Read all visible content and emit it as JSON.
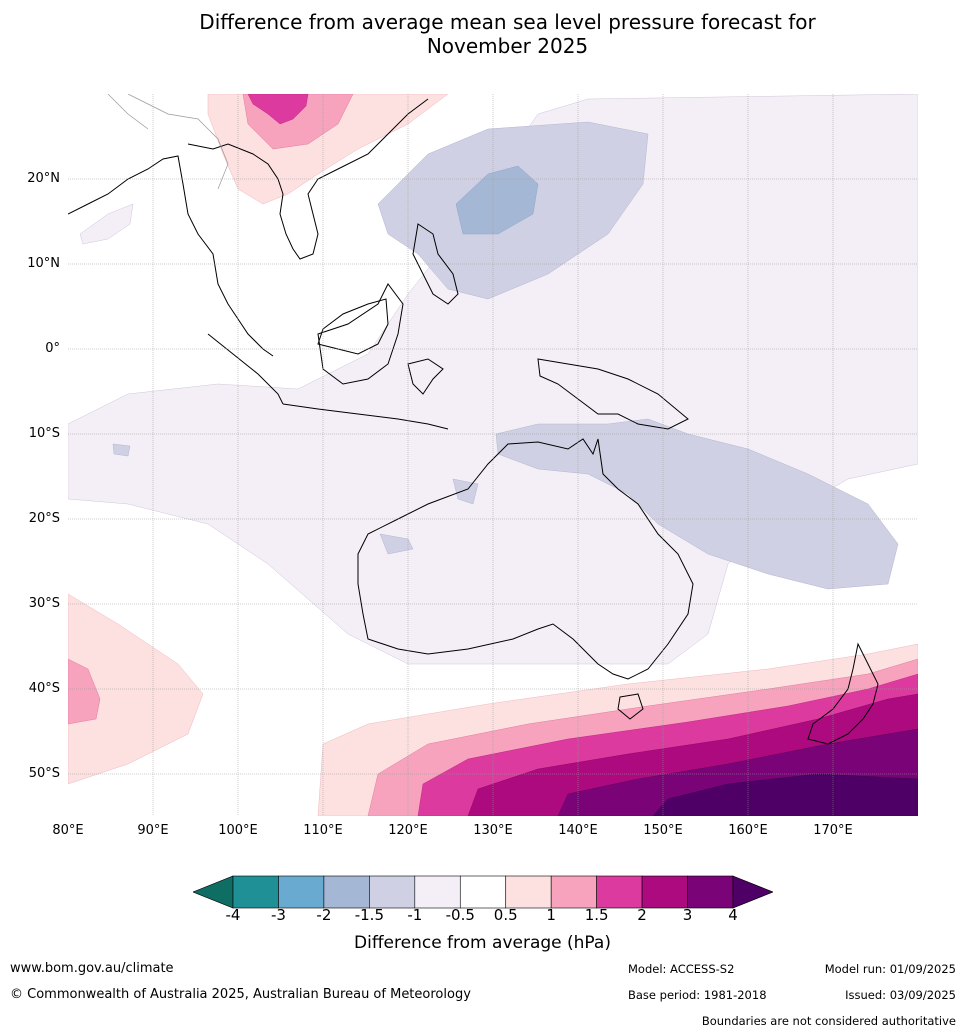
{
  "title": {
    "line1": "Difference from average mean sea level pressure forecast for",
    "line2": "November 2025"
  },
  "map": {
    "lat_labels": [
      "20°N",
      "10°N",
      "0°",
      "10°S",
      "20°S",
      "30°S",
      "40°S",
      "50°S"
    ],
    "lon_labels": [
      "80°E",
      "90°E",
      "100°E",
      "110°E",
      "120°E",
      "130°E",
      "140°E",
      "150°E",
      "160°E",
      "170°E"
    ],
    "extent": {
      "lon": [
        80,
        180
      ],
      "lat": [
        -55,
        30
      ]
    },
    "grid": true
  },
  "legend": {
    "ticks": [
      "-4",
      "-3",
      "-2",
      "-1.5",
      "-1",
      "-0.5",
      "0.5",
      "1",
      "1.5",
      "2",
      "3",
      "4"
    ],
    "colors": [
      "#0f6e63",
      "#1f9095",
      "#69abd0",
      "#a4b8d6",
      "#cfd0e3",
      "#f4eef6",
      "#ffffff",
      "#fde0e0",
      "#f7a3bd",
      "#dc3a9e",
      "#ad0a7f",
      "#7a0378",
      "#4e0066"
    ],
    "label": "Difference from average (hPa)"
  },
  "footer": {
    "url": "www.bom.gov.au/climate",
    "copyright": "© Commonwealth of Australia 2025, Australian Bureau of Meteorology",
    "model": "Model: ACCESS-S2",
    "base_period": "Base period: 1981-2018",
    "model_run": "Model run: 01/09/2025",
    "issued": "Issued: 03/09/2025",
    "disclaimer": "Boundaries are not considered authoritative"
  }
}
